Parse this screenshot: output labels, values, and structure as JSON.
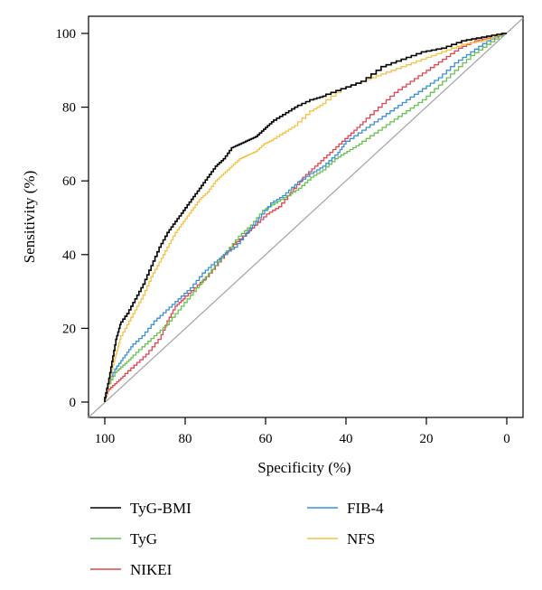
{
  "chart_data": {
    "type": "line",
    "title": "",
    "xlabel": "Specificity (%)",
    "ylabel": "Sensitivity (%)",
    "xlim": [
      100,
      0
    ],
    "ylim": [
      0,
      100
    ],
    "x_reversed": true,
    "xticks": [
      "100",
      "80",
      "60",
      "40",
      "20",
      "0"
    ],
    "yticks": [
      "0",
      "20",
      "40",
      "60",
      "80",
      "100"
    ],
    "grid": false,
    "legend_position": "bottom",
    "reference_line": {
      "from": [
        100,
        0
      ],
      "to": [
        0,
        100
      ],
      "color": "#a8a8a8"
    },
    "series": [
      {
        "name": "TyG-BMI",
        "color": "#000000",
        "points": [
          [
            100,
            0
          ],
          [
            99,
            5
          ],
          [
            98,
            11
          ],
          [
            97,
            17
          ],
          [
            96,
            21
          ],
          [
            94,
            24
          ],
          [
            92,
            28
          ],
          [
            90,
            32
          ],
          [
            88,
            37
          ],
          [
            86,
            42
          ],
          [
            84,
            46
          ],
          [
            82,
            49
          ],
          [
            80,
            52
          ],
          [
            78,
            55
          ],
          [
            76,
            58
          ],
          [
            74,
            61
          ],
          [
            72,
            64
          ],
          [
            70,
            66
          ],
          [
            68,
            69
          ],
          [
            66,
            70
          ],
          [
            64,
            71
          ],
          [
            62,
            72
          ],
          [
            60,
            74
          ],
          [
            58,
            76
          ],
          [
            55,
            78
          ],
          [
            52,
            80
          ],
          [
            48,
            82
          ],
          [
            45,
            83
          ],
          [
            40,
            85
          ],
          [
            35,
            87
          ],
          [
            30,
            91
          ],
          [
            25,
            93
          ],
          [
            20,
            95
          ],
          [
            15,
            96
          ],
          [
            10,
            98
          ],
          [
            5,
            99
          ],
          [
            0,
            100
          ]
        ]
      },
      {
        "name": "NFS",
        "color": "#f5c242",
        "points": [
          [
            100,
            0
          ],
          [
            99,
            4
          ],
          [
            98,
            9
          ],
          [
            97,
            13
          ],
          [
            96,
            17
          ],
          [
            94,
            21
          ],
          [
            92,
            25
          ],
          [
            90,
            29
          ],
          [
            88,
            34
          ],
          [
            86,
            38
          ],
          [
            84,
            42
          ],
          [
            82,
            46
          ],
          [
            80,
            49
          ],
          [
            78,
            52
          ],
          [
            76,
            55
          ],
          [
            74,
            57
          ],
          [
            72,
            60
          ],
          [
            70,
            62
          ],
          [
            68,
            64
          ],
          [
            66,
            66
          ],
          [
            64,
            67
          ],
          [
            62,
            68
          ],
          [
            60,
            70
          ],
          [
            58,
            71
          ],
          [
            55,
            73
          ],
          [
            52,
            75
          ],
          [
            48,
            79
          ],
          [
            45,
            81
          ],
          [
            40,
            85
          ],
          [
            35,
            87
          ],
          [
            30,
            89
          ],
          [
            25,
            91
          ],
          [
            20,
            93
          ],
          [
            15,
            95
          ],
          [
            10,
            97
          ],
          [
            5,
            98
          ],
          [
            0,
            100
          ]
        ]
      },
      {
        "name": "FIB-4",
        "color": "#3a8fd6",
        "points": [
          [
            100,
            0
          ],
          [
            99,
            5
          ],
          [
            97,
            9
          ],
          [
            95,
            12
          ],
          [
            93,
            15
          ],
          [
            90,
            18
          ],
          [
            87,
            22
          ],
          [
            84,
            25
          ],
          [
            81,
            28
          ],
          [
            78,
            31
          ],
          [
            75,
            35
          ],
          [
            72,
            38
          ],
          [
            70,
            40
          ],
          [
            67,
            42
          ],
          [
            64,
            46
          ],
          [
            61,
            50
          ],
          [
            58,
            54
          ],
          [
            55,
            56
          ],
          [
            52,
            59
          ],
          [
            48,
            62
          ],
          [
            45,
            64
          ],
          [
            42,
            67
          ],
          [
            40,
            70
          ],
          [
            36,
            73
          ],
          [
            32,
            76
          ],
          [
            28,
            79
          ],
          [
            24,
            82
          ],
          [
            20,
            85
          ],
          [
            16,
            88
          ],
          [
            12,
            92
          ],
          [
            8,
            95
          ],
          [
            4,
            98
          ],
          [
            0,
            100
          ]
        ]
      },
      {
        "name": "TyG",
        "color": "#6ac24f",
        "points": [
          [
            100,
            0
          ],
          [
            99,
            4
          ],
          [
            97,
            8
          ],
          [
            95,
            10
          ],
          [
            93,
            12
          ],
          [
            90,
            15
          ],
          [
            87,
            18
          ],
          [
            84,
            21
          ],
          [
            81,
            25
          ],
          [
            78,
            29
          ],
          [
            75,
            33
          ],
          [
            72,
            37
          ],
          [
            69,
            41
          ],
          [
            66,
            45
          ],
          [
            63,
            48
          ],
          [
            60,
            52
          ],
          [
            57,
            54
          ],
          [
            54,
            56
          ],
          [
            51,
            58
          ],
          [
            48,
            61
          ],
          [
            45,
            63
          ],
          [
            42,
            66
          ],
          [
            39,
            68
          ],
          [
            36,
            70
          ],
          [
            32,
            73
          ],
          [
            28,
            76
          ],
          [
            24,
            79
          ],
          [
            20,
            82
          ],
          [
            16,
            86
          ],
          [
            12,
            90
          ],
          [
            8,
            94
          ],
          [
            4,
            97
          ],
          [
            0,
            100
          ]
        ]
      },
      {
        "name": "NIKEI",
        "color": "#e0454f",
        "points": [
          [
            100,
            0
          ],
          [
            99,
            3
          ],
          [
            97,
            5
          ],
          [
            95,
            7
          ],
          [
            92,
            10
          ],
          [
            89,
            13
          ],
          [
            86,
            17
          ],
          [
            84,
            22
          ],
          [
            82,
            26
          ],
          [
            80,
            28
          ],
          [
            77,
            31
          ],
          [
            74,
            34
          ],
          [
            71,
            38
          ],
          [
            68,
            42
          ],
          [
            65,
            45
          ],
          [
            62,
            48
          ],
          [
            59,
            51
          ],
          [
            56,
            53
          ],
          [
            53,
            57
          ],
          [
            50,
            61
          ],
          [
            47,
            64
          ],
          [
            44,
            67
          ],
          [
            41,
            70
          ],
          [
            38,
            73
          ],
          [
            35,
            76
          ],
          [
            31,
            80
          ],
          [
            27,
            84
          ],
          [
            23,
            87
          ],
          [
            19,
            90
          ],
          [
            15,
            93
          ],
          [
            11,
            96
          ],
          [
            7,
            98
          ],
          [
            3,
            99
          ],
          [
            0,
            100
          ]
        ]
      }
    ],
    "legend": [
      {
        "name": "TyG-BMI",
        "color": "#000000"
      },
      {
        "name": "FIB-4",
        "color": "#3a8fd6"
      },
      {
        "name": "TyG",
        "color": "#6ac24f"
      },
      {
        "name": "NFS",
        "color": "#f5c242"
      },
      {
        "name": "NIKEI",
        "color": "#e0454f"
      }
    ]
  }
}
